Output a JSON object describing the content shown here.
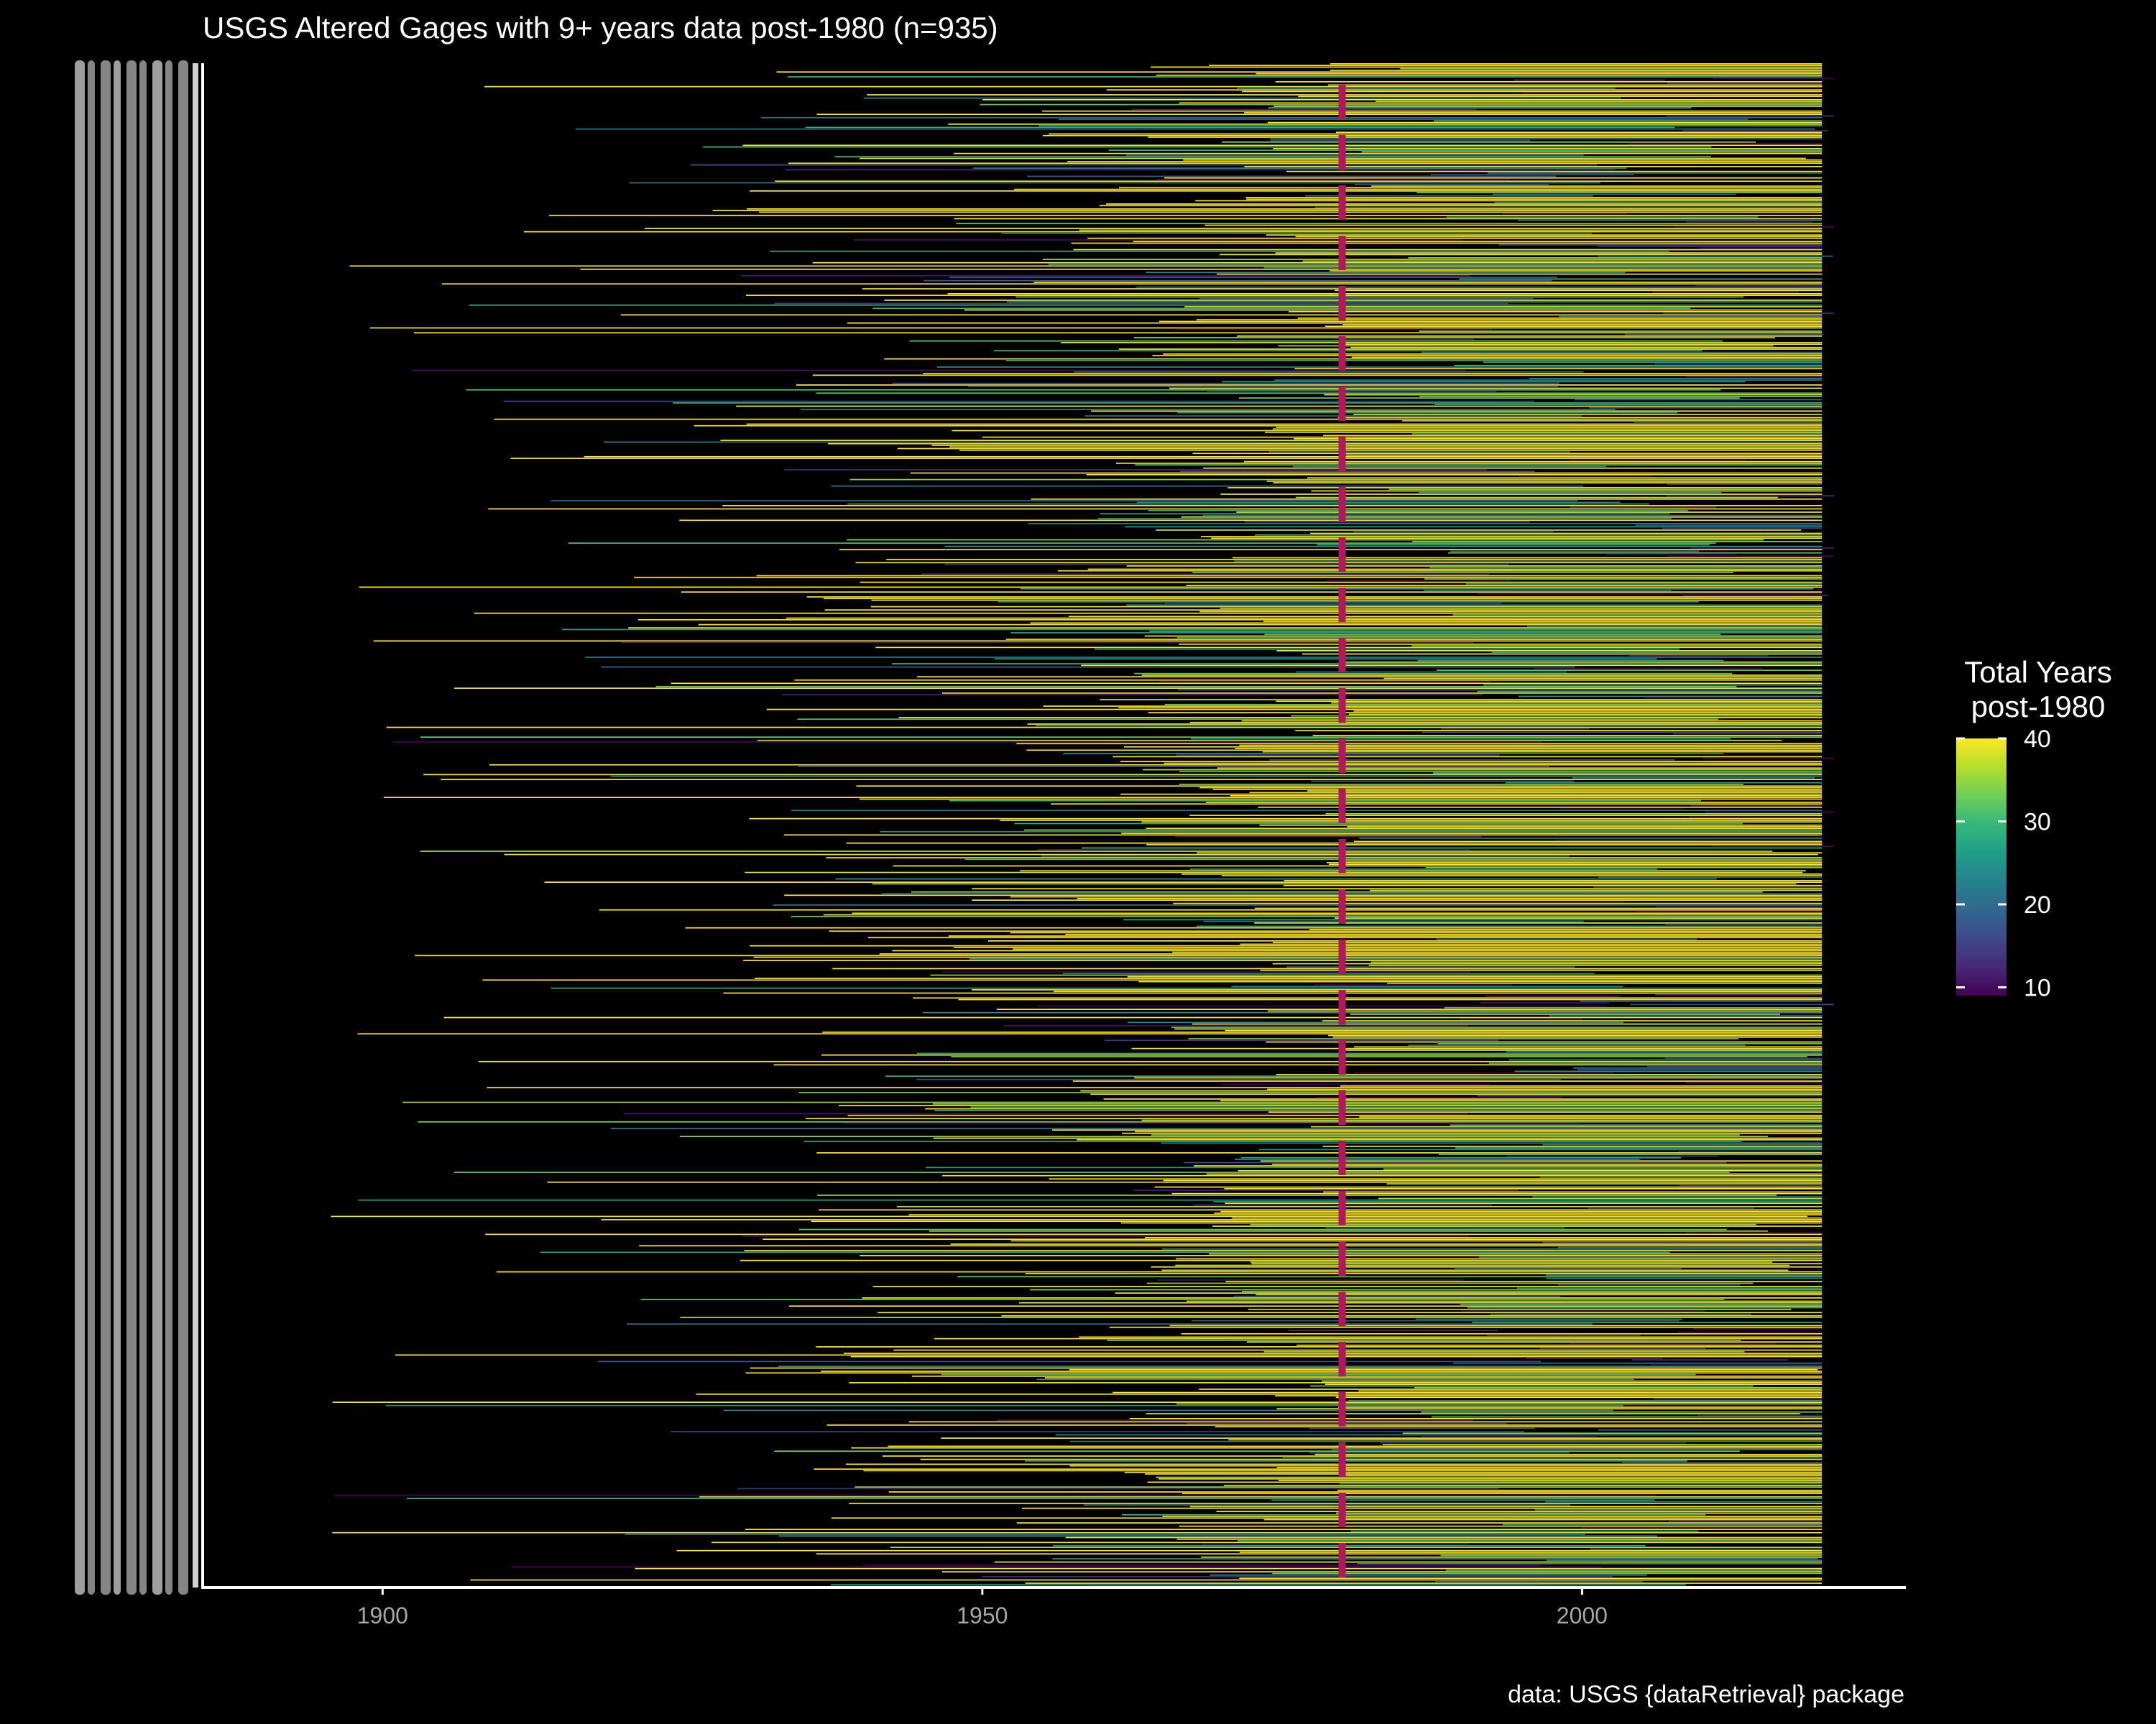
{
  "chart_data": {
    "type": "gantt-segments",
    "title": "USGS Altered Gages with 9+ years data post-1980 (n=935)",
    "caption": "data: USGS {dataRetrieval} package",
    "xlabel": "",
    "ylabel": "",
    "xlim": [
      1885,
      2027
    ],
    "x_ticks": [
      1900,
      1950,
      2000
    ],
    "x_tick_labels": [
      "1900",
      "1950",
      "2000"
    ],
    "n_gages": 935,
    "reference_year": 1980,
    "reference_line_color": "#b0195e",
    "grid": false,
    "legend": {
      "title_line1": "Total Years",
      "title_line2": "post-1980",
      "position": "right",
      "range": [
        9,
        40
      ],
      "ticks": [
        40,
        30,
        20,
        10
      ],
      "tick_labels": [
        "40",
        "30",
        "20",
        "10"
      ],
      "colormap": "viridis"
    },
    "colors": {
      "background": "#000000",
      "axis_line": "#ffffff",
      "tick_text": "#a6a6a6",
      "viridis_stops": [
        "#440154",
        "#482878",
        "#3e4989",
        "#31688e",
        "#26828e",
        "#1f9e89",
        "#35b779",
        "#6ece58",
        "#b5de2b",
        "#fde725"
      ]
    }
  }
}
